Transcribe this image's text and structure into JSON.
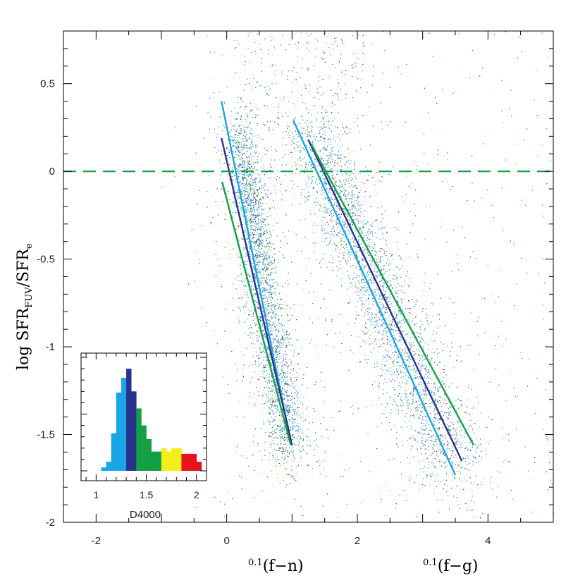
{
  "chart_data": [
    {
      "type": "scatter",
      "xlabels": [
        {
          "sup": "0.1",
          "text": "(f−n)"
        },
        {
          "sup": "0.1",
          "text": "(f−g)"
        }
      ],
      "ylabel": {
        "main": "log SFR",
        "sub1": "FUV",
        "slash": "/SFR",
        "sub2": "e"
      },
      "xlim": [
        -2.5,
        5
      ],
      "ylim": [
        -2,
        0.8
      ],
      "xticks": [
        -2,
        0,
        2,
        4
      ],
      "xtick_labels": [
        "-2",
        "0",
        "2",
        "4"
      ],
      "yticks": [
        0.5,
        0,
        -0.5,
        -1,
        -1.5,
        -2
      ],
      "ytick_labels": [
        "0.5",
        "0",
        "-0.5",
        "-1",
        "-1.5",
        "-2"
      ],
      "reference_line": {
        "y": 0,
        "style": "dashed",
        "color": "#13a045"
      },
      "point_clouds": [
        {
          "name": "f-n",
          "center_top": [
            0.2,
            0.2
          ],
          "center_bottom": [
            0.95,
            -1.6
          ]
        },
        {
          "name": "f-g",
          "center_top": [
            1.3,
            0.2
          ],
          "center_bottom": [
            3.5,
            -1.7
          ]
        }
      ],
      "point_colors": [
        "#1aa5e6",
        "#29318f",
        "#13a045",
        "#f5ee1b",
        "#e8121b"
      ],
      "fit_lines": [
        {
          "color": "#1aa5e6",
          "x": [
            -0.08,
            0.99
          ],
          "y": [
            0.4,
            -1.56
          ]
        },
        {
          "color": "#29318f",
          "x": [
            -0.08,
            1.0
          ],
          "y": [
            0.19,
            -1.56
          ]
        },
        {
          "color": "#13a045",
          "x": [
            -0.07,
            0.98
          ],
          "y": [
            -0.06,
            -1.56
          ]
        },
        {
          "color": "#1aa5e6",
          "x": [
            1.02,
            3.5
          ],
          "y": [
            0.29,
            -1.73
          ]
        },
        {
          "color": "#29318f",
          "x": [
            1.25,
            3.6
          ],
          "y": [
            0.18,
            -1.65
          ]
        },
        {
          "color": "#13a045",
          "x": [
            1.3,
            3.78
          ],
          "y": [
            0.15,
            -1.56
          ]
        }
      ]
    },
    {
      "type": "bar",
      "xlabel": "D4000",
      "xlim": [
        0.85,
        2.1
      ],
      "xticks": [
        1,
        1.5,
        2
      ],
      "xtick_labels": [
        "1",
        "1.5",
        "2"
      ],
      "bin_edges": [
        1.05,
        1.1,
        1.15,
        1.2,
        1.25,
        1.3,
        1.35,
        1.4,
        1.45,
        1.5,
        1.55,
        1.6,
        1.65,
        1.7,
        1.75,
        1.8,
        1.85,
        1.9,
        1.95,
        2.0,
        2.05
      ],
      "values": [
        0.03,
        0.08,
        0.33,
        0.69,
        0.82,
        0.9,
        0.7,
        0.55,
        0.4,
        0.28,
        0.17,
        0.17,
        0.2,
        0.17,
        0.2,
        0.2,
        0.15,
        0.15,
        0.15,
        0.08
      ],
      "colors": [
        "#1aa5e6",
        "#1aa5e6",
        "#1aa5e6",
        "#1aa5e6",
        "#1aa5e6",
        "#29318f",
        "#29318f",
        "#13a045",
        "#13a045",
        "#13a045",
        "#13a045",
        "#13a045",
        "#f5ee1b",
        "#f5ee1b",
        "#f5ee1b",
        "#f5ee1b",
        "#e8121b",
        "#e8121b",
        "#e8121b",
        "#e8121b"
      ],
      "ylim": [
        0,
        1
      ]
    }
  ]
}
